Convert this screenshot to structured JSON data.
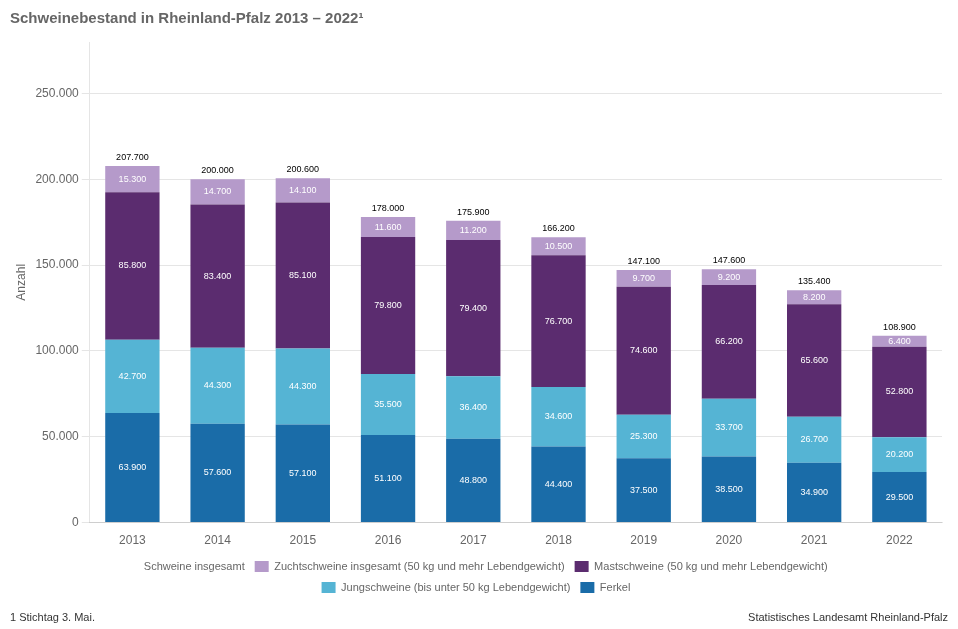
{
  "chart_data": {
    "type": "bar",
    "title": "Schweinebestand in Rheinland-Pfalz 2013 – 2022¹",
    "ylabel": "Anzahl",
    "categories": [
      "2013",
      "2014",
      "2015",
      "2016",
      "2017",
      "2018",
      "2019",
      "2020",
      "2021",
      "2022"
    ],
    "series": [
      {
        "name": "Ferkel",
        "color": "#1a6ca8",
        "values": [
          63900,
          57600,
          57100,
          51100,
          48800,
          44400,
          37500,
          38500,
          34900,
          29500
        ],
        "value_labels": [
          "63.900",
          "57.600",
          "57.100",
          "51.100",
          "48.800",
          "44.400",
          "37.500",
          "38.500",
          "34.900",
          "29.500"
        ]
      },
      {
        "name": "Jungschweine (bis unter 50 kg Lebendgewicht)",
        "color": "#55b4d4",
        "values": [
          42700,
          44300,
          44300,
          35500,
          36400,
          34600,
          25300,
          33700,
          26700,
          20200
        ],
        "value_labels": [
          "42.700",
          "44.300",
          "44.300",
          "35.500",
          "36.400",
          "34.600",
          "25.300",
          "33.700",
          "26.700",
          "20.200"
        ]
      },
      {
        "name": "Mastschweine (50 kg und mehr Lebendgewicht)",
        "color": "#5b2c6f",
        "values": [
          85800,
          83400,
          85100,
          79800,
          79400,
          76700,
          74600,
          66200,
          65600,
          52800
        ],
        "value_labels": [
          "85.800",
          "83.400",
          "85.100",
          "79.800",
          "79.400",
          "76.700",
          "74.600",
          "66.200",
          "65.600",
          "52.800"
        ]
      },
      {
        "name": "Zuchtschweine insgesamt (50 kg und mehr Lebendgewicht)",
        "color": "#b59aca",
        "values": [
          15300,
          14700,
          14100,
          11600,
          11200,
          10500,
          9700,
          9200,
          8200,
          6400
        ],
        "value_labels": [
          "15.300",
          "14.700",
          "14.100",
          "11.600",
          "11.200",
          "10.500",
          "9.700",
          "9.200",
          "8.200",
          "6.400"
        ]
      },
      {
        "name": "Schweine insgesamt",
        "type": "label",
        "values": [
          207700,
          200000,
          200600,
          178000,
          175900,
          166200,
          147100,
          147600,
          135400,
          108900
        ],
        "value_labels": [
          "207.700",
          "200.000",
          "200.600",
          "178.000",
          "175.900",
          "166.200",
          "147.100",
          "147.600",
          "135.400",
          "108.900"
        ]
      }
    ],
    "ylim": [
      0,
      280000
    ],
    "yticks": [
      0,
      {
        "value": 50000,
        "label": "50.000"
      },
      {
        "value": 100000,
        "label": "100.000"
      },
      {
        "value": 150000,
        "label": "150.000"
      },
      {
        "value": 200000,
        "label": "200.000"
      },
      {
        "value": 250000,
        "label": "250.000"
      }
    ],
    "stacked": true,
    "grid": true,
    "data_labels": true,
    "legend": "bottom",
    "annotations": [
      "1 Stichtag 3. Mai.",
      "Statistisches Landesamt Rheinland-Pfalz"
    ]
  }
}
